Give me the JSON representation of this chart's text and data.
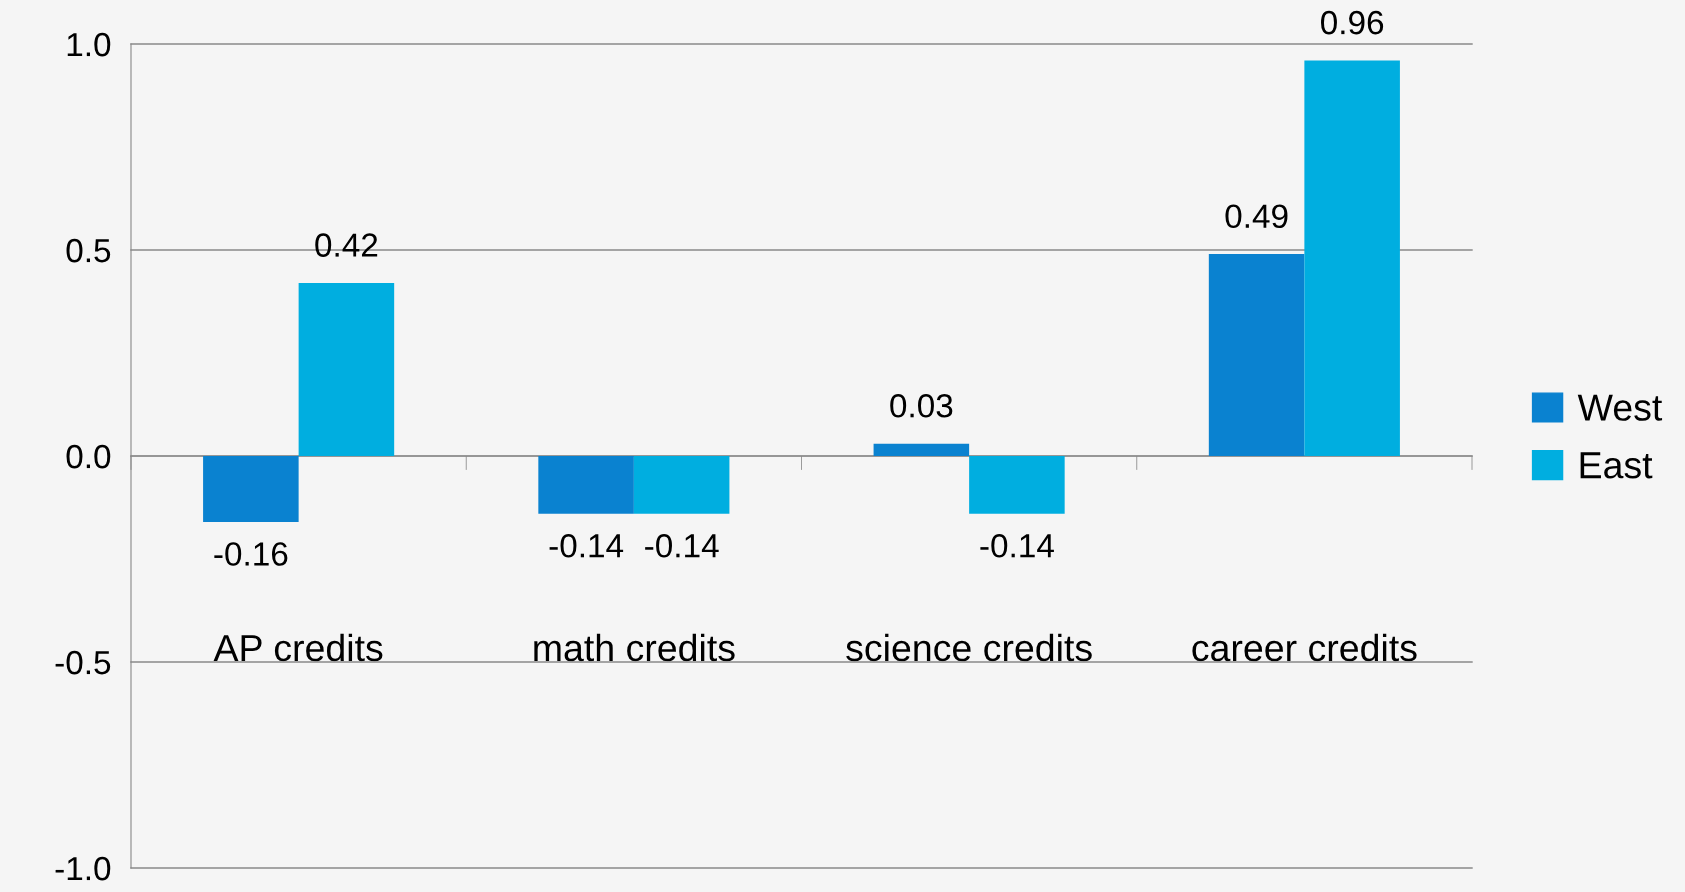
{
  "chart_data": {
    "type": "bar",
    "categories": [
      "AP credits",
      "math credits",
      "science credits",
      "career credits"
    ],
    "series": [
      {
        "name": "West",
        "color": "#0a82d0",
        "values": [
          -0.16,
          -0.14,
          0.03,
          0.49
        ]
      },
      {
        "name": "East",
        "color": "#00aee0",
        "values": [
          0.42,
          -0.14,
          -0.14,
          0.96
        ]
      }
    ],
    "ylim": [
      -1.0,
      1.0
    ],
    "yticks": [
      {
        "value": -1.0,
        "label": "-1.0"
      },
      {
        "value": -0.5,
        "label": "-0.5"
      },
      {
        "value": 0.0,
        "label": "0.0"
      },
      {
        "value": 0.5,
        "label": "0.5"
      },
      {
        "value": 1.0,
        "label": "1.0"
      }
    ],
    "grid": "y",
    "legend": "right",
    "data_labels": true
  }
}
